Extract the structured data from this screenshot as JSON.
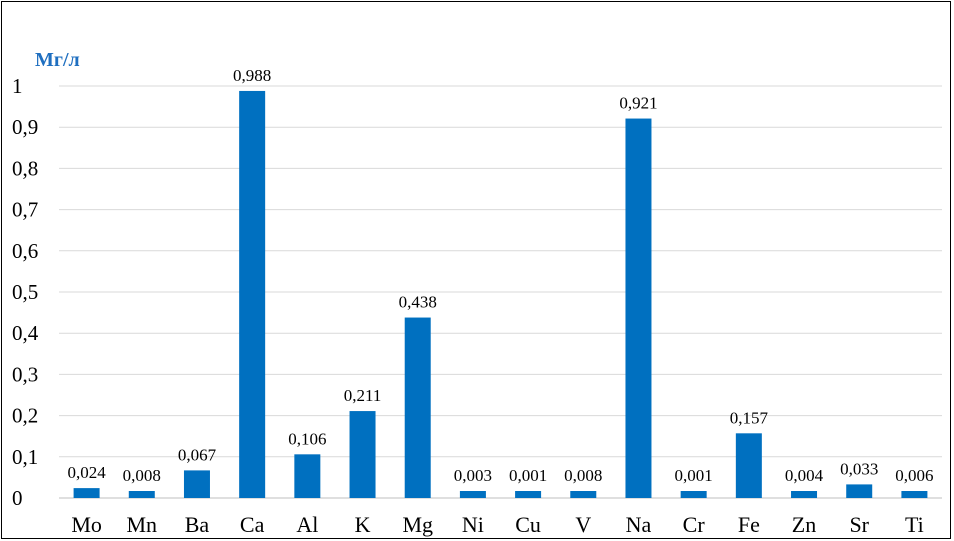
{
  "chart_data": {
    "type": "bar",
    "title": "",
    "xlabel": "",
    "ylabel": "Мг/л",
    "ylim": [
      0,
      1
    ],
    "yticks": [
      "0",
      "0,1",
      "0,2",
      "0,3",
      "0,4",
      "0,5",
      "0,6",
      "0,7",
      "0,8",
      "0,9",
      "1"
    ],
    "grid": true,
    "legend": "none",
    "bar_color": "#0070C0",
    "categories": [
      "Mo",
      "Mn",
      "Ba",
      "Ca",
      "Al",
      "K",
      "Mg",
      "Ni",
      "Cu",
      "V",
      "Na",
      "Cr",
      "Fe",
      "Zn",
      "Sr",
      "Ti"
    ],
    "values": [
      0.024,
      0.008,
      0.067,
      0.988,
      0.106,
      0.211,
      0.438,
      0.003,
      0.001,
      0.008,
      0.921,
      0.001,
      0.157,
      0.004,
      0.033,
      0.006
    ],
    "value_labels": [
      "0,024",
      "0,008",
      "0,067",
      "0,988",
      "0,106",
      "0,211",
      "0,438",
      "0,003",
      "0,001",
      "0,008",
      "0,921",
      "0,001",
      "0,157",
      "0,004",
      "0,033",
      "0,006"
    ]
  }
}
